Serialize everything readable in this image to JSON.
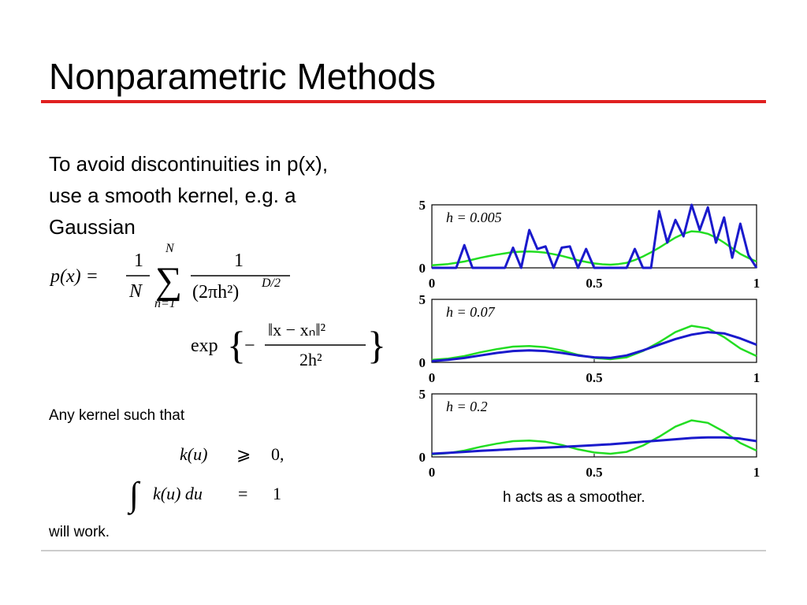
{
  "slide": {
    "title": "Nonparametric Methods",
    "body": [
      "To avoid discontinuities in p(x),",
      "use a smooth kernel, e.g. a",
      "Gaussian"
    ],
    "formula1": {
      "lhs": "p(x) =",
      "frac1_num": "1",
      "frac1_den": "N",
      "sum": "∑",
      "sum_top": "N",
      "sum_bottom": "n=1",
      "frac2_num": "1",
      "frac2_den": "(2πh²)",
      "frac2_exp": "D/2",
      "exp": "exp",
      "brace_open": "{",
      "minus": "−",
      "frac3_num": "‖x − xₙ‖²",
      "frac3_den": "2h²",
      "brace_close": "}"
    },
    "kernel_intro": "Any kernel such that",
    "formula2": {
      "lhs1": "k(u)",
      "rel1": "⩾",
      "rhs1": "0,",
      "integral": "∫",
      "lhs2": "k(u) du",
      "rel2": "=",
      "rhs2": "1"
    },
    "outro": "will work.",
    "caption": "h acts as a smoother."
  },
  "chart_data": [
    {
      "type": "line",
      "annotation": "h = 0.005",
      "x": [
        0,
        0.025,
        0.05,
        0.075,
        0.1,
        0.125,
        0.15,
        0.175,
        0.2,
        0.225,
        0.25,
        0.275,
        0.3,
        0.325,
        0.35,
        0.375,
        0.4,
        0.425,
        0.45,
        0.475,
        0.5,
        0.525,
        0.55,
        0.575,
        0.6,
        0.625,
        0.65,
        0.675,
        0.7,
        0.725,
        0.75,
        0.775,
        0.8,
        0.825,
        0.85,
        0.875,
        0.9,
        0.925,
        0.95,
        0.975,
        1
      ],
      "series": [
        {
          "color": "#22dd22",
          "values": [
            0.2,
            0.25,
            0.3,
            0.4,
            0.5,
            0.65,
            0.8,
            0.93,
            1.05,
            1.15,
            1.25,
            1.28,
            1.3,
            1.26,
            1.2,
            1.08,
            0.95,
            0.78,
            0.6,
            0.47,
            0.35,
            0.28,
            0.25,
            0.3,
            0.4,
            0.62,
            0.9,
            1.23,
            1.6,
            2.0,
            2.4,
            2.7,
            2.9,
            2.85,
            2.7,
            2.4,
            2.0,
            1.55,
            1.1,
            0.78,
            0.5
          ]
        },
        {
          "color": "#1a1acc",
          "values": [
            0,
            0,
            0,
            0,
            1.8,
            0,
            0,
            0,
            0,
            0,
            1.6,
            0,
            3.0,
            1.5,
            1.7,
            0,
            1.6,
            1.7,
            0,
            1.5,
            0,
            0,
            0,
            0,
            0,
            1.5,
            0,
            0,
            4.5,
            2.0,
            3.8,
            2.5,
            5.0,
            3.0,
            4.8,
            2.0,
            4.0,
            0.8,
            3.5,
            1.0,
            0
          ]
        }
      ],
      "xlim": [
        0,
        1
      ],
      "ylim": [
        0,
        5
      ],
      "xticks": [
        0,
        0.5,
        1
      ],
      "yticks": [
        0,
        5
      ]
    },
    {
      "type": "line",
      "annotation": "h = 0.07",
      "x": [
        0,
        0.05,
        0.1,
        0.15,
        0.2,
        0.25,
        0.3,
        0.35,
        0.4,
        0.45,
        0.5,
        0.55,
        0.6,
        0.65,
        0.7,
        0.75,
        0.8,
        0.85,
        0.9,
        0.95,
        1
      ],
      "series": [
        {
          "color": "#22dd22",
          "values": [
            0.2,
            0.3,
            0.5,
            0.8,
            1.05,
            1.25,
            1.3,
            1.2,
            0.95,
            0.6,
            0.35,
            0.25,
            0.4,
            0.9,
            1.6,
            2.4,
            2.9,
            2.7,
            2.0,
            1.1,
            0.5
          ]
        },
        {
          "color": "#1a1acc",
          "values": [
            0.1,
            0.2,
            0.35,
            0.55,
            0.75,
            0.9,
            0.95,
            0.9,
            0.75,
            0.55,
            0.4,
            0.35,
            0.55,
            0.95,
            1.4,
            1.85,
            2.2,
            2.4,
            2.3,
            1.9,
            1.4
          ]
        }
      ],
      "xlim": [
        0,
        1
      ],
      "ylim": [
        0,
        5
      ],
      "xticks": [
        0,
        0.5,
        1
      ],
      "yticks": [
        0,
        5
      ]
    },
    {
      "type": "line",
      "annotation": "h = 0.2",
      "x": [
        0,
        0.05,
        0.1,
        0.15,
        0.2,
        0.25,
        0.3,
        0.35,
        0.4,
        0.45,
        0.5,
        0.55,
        0.6,
        0.65,
        0.7,
        0.75,
        0.8,
        0.85,
        0.9,
        0.95,
        1
      ],
      "series": [
        {
          "color": "#22dd22",
          "values": [
            0.2,
            0.3,
            0.5,
            0.8,
            1.05,
            1.25,
            1.3,
            1.2,
            0.95,
            0.6,
            0.35,
            0.25,
            0.4,
            0.9,
            1.6,
            2.4,
            2.9,
            2.7,
            2.0,
            1.1,
            0.5
          ]
        },
        {
          "color": "#1a1acc",
          "values": [
            0.25,
            0.32,
            0.4,
            0.48,
            0.55,
            0.62,
            0.68,
            0.74,
            0.8,
            0.86,
            0.93,
            1.0,
            1.1,
            1.2,
            1.3,
            1.4,
            1.5,
            1.55,
            1.55,
            1.45,
            1.25
          ]
        }
      ],
      "xlim": [
        0,
        1
      ],
      "ylim": [
        0,
        5
      ],
      "xticks": [
        0,
        0.5,
        1
      ],
      "yticks": [
        0,
        5
      ]
    }
  ]
}
